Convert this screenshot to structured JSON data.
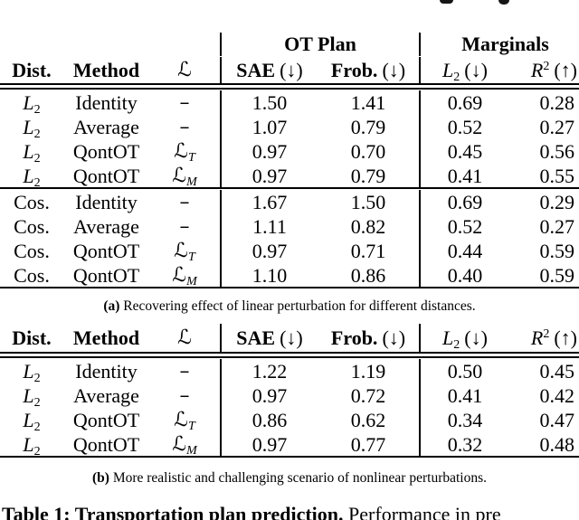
{
  "group_header": {
    "ot_plan": "OT Plan",
    "marginals": "Marginals"
  },
  "header": {
    "dist": "Dist.",
    "method": "Method",
    "loss": "ℒ",
    "sae": "SAE",
    "frob": "Frob.",
    "down": "(↓)",
    "up": "(↑)",
    "l2_base": "L",
    "l2_sub": "2",
    "r2_base": "R",
    "r2_sup": "2"
  },
  "table_a": {
    "rows": [
      {
        "dist_base": "L",
        "dist_sub": "2",
        "method": "Identity",
        "loss_base": "–",
        "loss_sub": "",
        "sae": "1.50",
        "frob": "1.41",
        "l2": "0.69",
        "r2": "0.28"
      },
      {
        "dist_base": "L",
        "dist_sub": "2",
        "method": "Average",
        "loss_base": "–",
        "loss_sub": "",
        "sae": "1.07",
        "frob": "0.79",
        "l2": "0.52",
        "r2": "0.27"
      },
      {
        "dist_base": "L",
        "dist_sub": "2",
        "method": "QontOT",
        "loss_base": "ℒ",
        "loss_sub": "T",
        "sae": "0.97",
        "frob": "0.70",
        "l2": "0.45",
        "r2": "0.56"
      },
      {
        "dist_base": "L",
        "dist_sub": "2",
        "method": "QontOT",
        "loss_base": "ℒ",
        "loss_sub": "M",
        "sae": "0.97",
        "frob": "0.79",
        "l2": "0.41",
        "r2": "0.55"
      },
      {
        "dist_base": "Cos.",
        "dist_sub": "",
        "method": "Identity",
        "loss_base": "–",
        "loss_sub": "",
        "sae": "1.67",
        "frob": "1.50",
        "l2": "0.69",
        "r2": "0.29"
      },
      {
        "dist_base": "Cos.",
        "dist_sub": "",
        "method": "Average",
        "loss_base": "–",
        "loss_sub": "",
        "sae": "1.11",
        "frob": "0.82",
        "l2": "0.52",
        "r2": "0.27"
      },
      {
        "dist_base": "Cos.",
        "dist_sub": "",
        "method": "QontOT",
        "loss_base": "ℒ",
        "loss_sub": "T",
        "sae": "0.97",
        "frob": "0.71",
        "l2": "0.44",
        "r2": "0.59"
      },
      {
        "dist_base": "Cos.",
        "dist_sub": "",
        "method": "QontOT",
        "loss_base": "ℒ",
        "loss_sub": "M",
        "sae": "1.10",
        "frob": "0.86",
        "l2": "0.40",
        "r2": "0.59"
      }
    ],
    "caption_label": "(a)",
    "caption_text": "Recovering effect of linear perturbation for different distances."
  },
  "table_b": {
    "rows": [
      {
        "dist_base": "L",
        "dist_sub": "2",
        "method": "Identity",
        "loss_base": "–",
        "loss_sub": "",
        "sae": "1.22",
        "frob": "1.19",
        "l2": "0.50",
        "r2": "0.45"
      },
      {
        "dist_base": "L",
        "dist_sub": "2",
        "method": "Average",
        "loss_base": "–",
        "loss_sub": "",
        "sae": "0.97",
        "frob": "0.72",
        "l2": "0.41",
        "r2": "0.42"
      },
      {
        "dist_base": "L",
        "dist_sub": "2",
        "method": "QontOT",
        "loss_base": "ℒ",
        "loss_sub": "T",
        "sae": "0.86",
        "frob": "0.62",
        "l2": "0.34",
        "r2": "0.47"
      },
      {
        "dist_base": "L",
        "dist_sub": "2",
        "method": "QontOT",
        "loss_base": "ℒ",
        "loss_sub": "M",
        "sae": "0.97",
        "frob": "0.77",
        "l2": "0.32",
        "r2": "0.48"
      }
    ],
    "caption_label": "(b)",
    "caption_text": "More realistic and challenging scenario of nonlinear perturbations."
  },
  "footer": {
    "caption_bold": "Table 1: Transportation plan prediction.",
    "caption_rest": "Performance in pre"
  }
}
